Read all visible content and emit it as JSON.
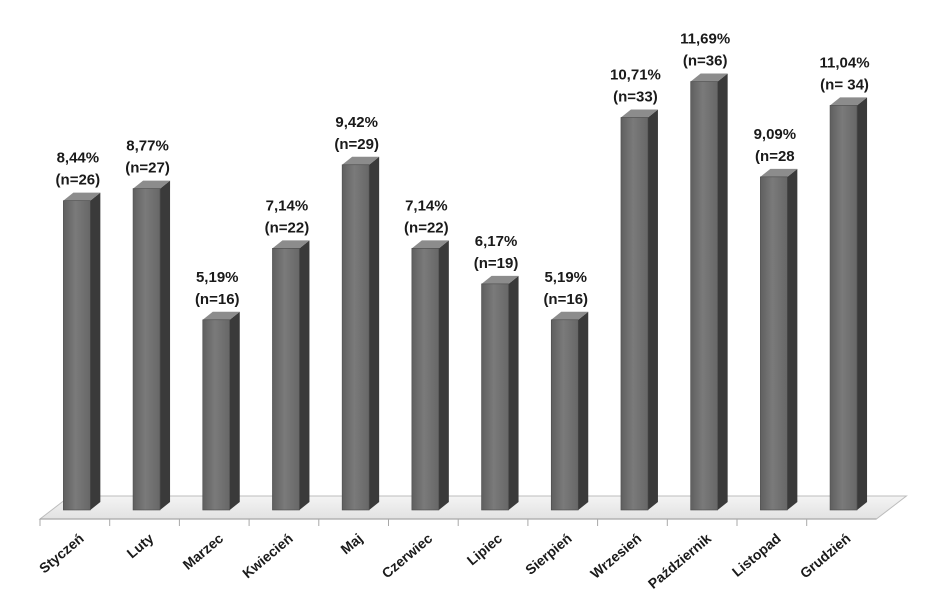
{
  "chart_data": {
    "type": "bar",
    "categories": [
      "Styczeń",
      "Luty",
      "Marzec",
      "Kwiecień",
      "Maj",
      "Czerwiec",
      "Lipiec",
      "Sierpień",
      "Wrzesień",
      "Październik",
      "Listopad",
      "Grudzień"
    ],
    "values": [
      8.44,
      8.77,
      5.19,
      7.14,
      9.42,
      7.14,
      6.17,
      5.19,
      10.71,
      11.69,
      9.09,
      11.04
    ],
    "data_labels": [
      [
        "8,44%",
        "(n=26)"
      ],
      [
        "8,77%",
        "(n=27)"
      ],
      [
        "5,19%",
        "(n=16)"
      ],
      [
        "7,14%",
        "(n=22)"
      ],
      [
        "9,42%",
        "(n=29)"
      ],
      [
        "7,14%",
        "(n=22)"
      ],
      [
        "6,17%",
        "(n=19)"
      ],
      [
        "5,19%",
        "(n=16)"
      ],
      [
        "10,71%",
        "(n=33)"
      ],
      [
        "11,69%",
        "(n=36)"
      ],
      [
        "9,09%",
        "(n=28"
      ],
      [
        "11,04%",
        "(n= 34)"
      ]
    ],
    "title": "",
    "xlabel": "",
    "ylabel": "",
    "ylim": [
      0,
      12
    ],
    "grid": false,
    "legend": "none",
    "style": "3d-column",
    "colors": {
      "bar_front": "#6e6e6e",
      "bar_side": "#3a3a3a",
      "bar_top": "#8c8c8c",
      "floor": "#ededed",
      "floor_edge": "#bdbdbd"
    }
  }
}
